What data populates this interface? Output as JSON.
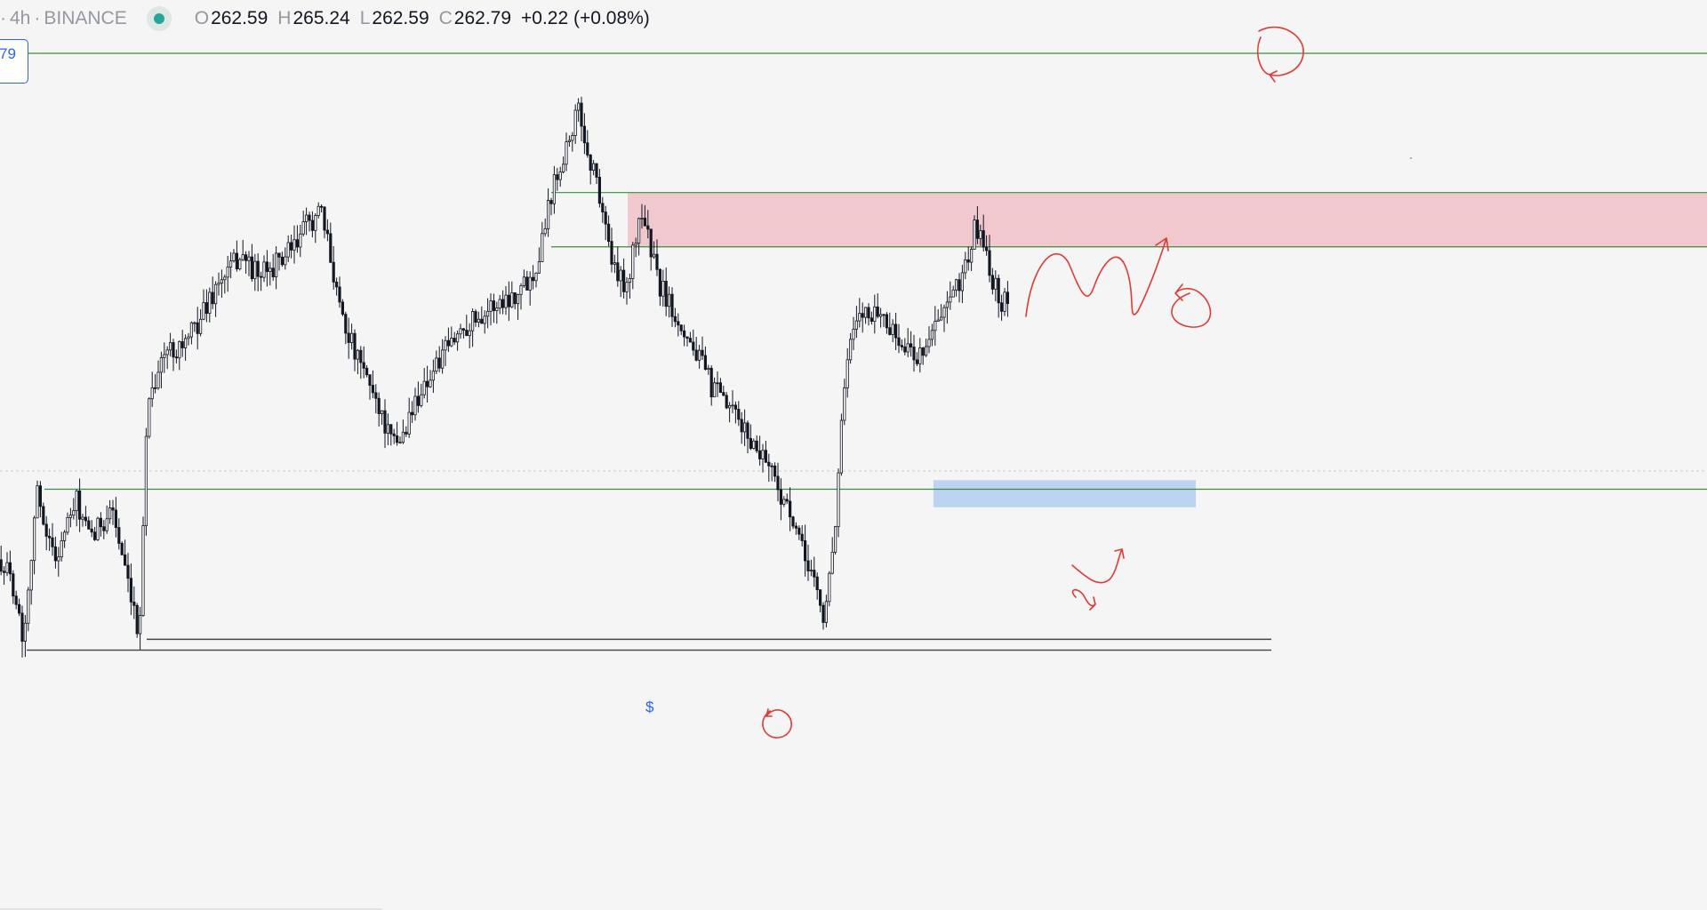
{
  "legend": {
    "prefix": "·",
    "interval": "4h",
    "dot": "·",
    "exchange": "BINANCE",
    "ohlc": [
      {
        "key": "O",
        "value": "262.59"
      },
      {
        "key": "H",
        "value": "265.24"
      },
      {
        "key": "L",
        "value": "262.59"
      },
      {
        "key": "C",
        "value": "262.79"
      }
    ],
    "change": "+0.22 (+0.08%)"
  },
  "price_tag": "79",
  "dollar_label": "$",
  "colors": {
    "background": "#f5f5f5",
    "candle": "#131722",
    "level_line": "#388e3c",
    "resistance_zone": "#f0c8cd",
    "support_zone": "#bdd3f2",
    "drawing": "#e53935",
    "base_line": "#444444",
    "accent": "#2962ff"
  },
  "chart_data": {
    "type": "candlestick",
    "interval": "4h",
    "exchange": "BINANCE",
    "ylim": [
      239,
      276
    ],
    "key_points": [
      [
        0,
        248.0
      ],
      [
        15,
        246.5
      ],
      [
        25,
        243.5
      ],
      [
        40,
        251.8
      ],
      [
        60,
        248.0
      ],
      [
        85,
        251.2
      ],
      [
        100,
        249.0
      ],
      [
        125,
        251.0
      ],
      [
        140,
        247.0
      ],
      [
        155,
        243.6
      ],
      [
        165,
        257.0
      ],
      [
        185,
        259.5
      ],
      [
        210,
        260.1
      ],
      [
        240,
        262.9
      ],
      [
        270,
        264.9
      ],
      [
        290,
        263.6
      ],
      [
        330,
        265.2
      ],
      [
        345,
        266.7
      ],
      [
        360,
        267.1
      ],
      [
        385,
        261.4
      ],
      [
        400,
        259.1
      ],
      [
        420,
        257.2
      ],
      [
        440,
        254.3
      ],
      [
        450,
        254.7
      ],
      [
        470,
        257.2
      ],
      [
        500,
        259.5
      ],
      [
        520,
        260.9
      ],
      [
        540,
        261.6
      ],
      [
        560,
        262.2
      ],
      [
        580,
        262.8
      ],
      [
        600,
        263.9
      ],
      [
        620,
        268.6
      ],
      [
        630,
        270.1
      ],
      [
        650,
        272.9
      ],
      [
        660,
        270.3
      ],
      [
        670,
        269.0
      ],
      [
        690,
        263.8
      ],
      [
        705,
        263.2
      ],
      [
        720,
        267.5
      ],
      [
        740,
        263.2
      ],
      [
        760,
        261.5
      ],
      [
        780,
        259.6
      ],
      [
        800,
        257.5
      ],
      [
        830,
        255.6
      ],
      [
        850,
        254.1
      ],
      [
        860,
        253.8
      ],
      [
        880,
        251.3
      ],
      [
        900,
        248.6
      ],
      [
        915,
        247.0
      ],
      [
        925,
        244.4
      ],
      [
        940,
        250.9
      ],
      [
        945,
        255.7
      ],
      [
        955,
        260.0
      ],
      [
        970,
        261.8
      ],
      [
        990,
        261.6
      ],
      [
        1010,
        260.0
      ],
      [
        1030,
        259.2
      ],
      [
        1050,
        260.8
      ],
      [
        1070,
        262.4
      ],
      [
        1085,
        264.3
      ],
      [
        1095,
        266.2
      ],
      [
        1105,
        265.7
      ],
      [
        1115,
        263.5
      ],
      [
        1125,
        262.2
      ],
      [
        1135,
        262.7
      ]
    ],
    "last": {
      "open": 262.59,
      "high": 265.24,
      "low": 262.59,
      "close": 262.79,
      "change": 0.22,
      "change_pct": 0.08
    },
    "horizontal_levels": [
      {
        "price": 276.0,
        "x_start": 30,
        "x_end": 1920
      },
      {
        "price": 268.3,
        "x_start": 620,
        "x_end": 1920
      },
      {
        "price": 265.3,
        "x_start": 620,
        "x_end": 1920
      },
      {
        "price": 251.9,
        "x_start": 50,
        "x_end": 1920
      }
    ],
    "zones": [
      {
        "name": "resistance",
        "price_top": 268.3,
        "price_bottom": 265.3,
        "x_start": 706,
        "x_end": 1920
      },
      {
        "name": "support",
        "price_top": 252.4,
        "price_bottom": 250.9,
        "x_start": 1050,
        "x_end": 1345
      }
    ],
    "base_lines": [
      {
        "price": 243.6,
        "x_start": 165,
        "x_end": 1430
      },
      {
        "price": 243.0,
        "x_start": 30,
        "x_end": 1430
      }
    ],
    "grid": false,
    "legend_position": "top-left"
  }
}
